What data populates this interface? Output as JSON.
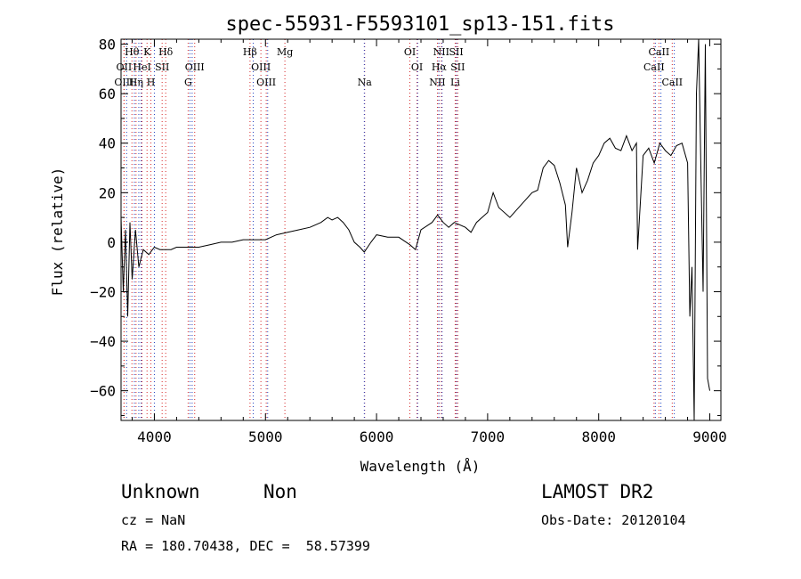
{
  "chart_data": {
    "type": "line",
    "title": "spec-55931-F5593101_sp13-151.fits",
    "xlabel": "Wavelength (Å)",
    "ylabel": "Flux (relative)",
    "xlim": [
      3700,
      9100
    ],
    "ylim": [
      -72,
      82
    ],
    "xticks": [
      4000,
      5000,
      6000,
      7000,
      8000,
      9000
    ],
    "yticks": [
      -60,
      -40,
      -20,
      0,
      20,
      40,
      60,
      80
    ],
    "xticklabels": [
      "4000",
      "5000",
      "6000",
      "7000",
      "8000",
      "9000"
    ],
    "yticklabels": [
      "−60",
      "−40",
      "−20",
      "0",
      "20",
      "40",
      "60",
      "80"
    ],
    "grid": false,
    "series": [
      {
        "color": "#000000",
        "x": [
          3700,
          3720,
          3740,
          3760,
          3780,
          3800,
          3830,
          3860,
          3900,
          3950,
          4000,
          4050,
          4100,
          4150,
          4200,
          4300,
          4400,
          4500,
          4600,
          4700,
          4800,
          4900,
          5000,
          5100,
          5200,
          5300,
          5400,
          5500,
          5560,
          5600,
          5650,
          5700,
          5750,
          5800,
          5850,
          5890,
          5950,
          6000,
          6100,
          6200,
          6300,
          6350,
          6400,
          6500,
          6550,
          6600,
          6650,
          6700,
          6800,
          6850,
          6900,
          7000,
          7050,
          7100,
          7200,
          7300,
          7400,
          7450,
          7500,
          7550,
          7600,
          7650,
          7700,
          7720,
          7760,
          7800,
          7850,
          7900,
          7950,
          8000,
          8050,
          8100,
          8150,
          8200,
          8250,
          8300,
          8340,
          8350,
          8400,
          8450,
          8500,
          8550,
          8600,
          8650,
          8700,
          8750,
          8800,
          8820,
          8840,
          8860,
          8880,
          8900,
          8920,
          8940,
          8960,
          8980,
          9000
        ],
        "y": [
          10,
          -20,
          5,
          -30,
          8,
          -15,
          5,
          -10,
          -3,
          -5,
          -2,
          -3,
          -3,
          -3,
          -2,
          -2,
          -2,
          -1,
          0,
          0,
          1,
          1,
          1,
          3,
          4,
          5,
          6,
          8,
          10,
          9,
          10,
          8,
          5,
          0,
          -2,
          -4,
          0,
          3,
          2,
          2,
          -1,
          -3,
          5,
          8,
          11,
          8,
          6,
          8,
          6,
          4,
          8,
          12,
          20,
          14,
          10,
          15,
          20,
          21,
          30,
          33,
          31,
          24,
          15,
          -2,
          12,
          30,
          20,
          25,
          32,
          35,
          40,
          42,
          38,
          37,
          43,
          37,
          40,
          -3,
          35,
          38,
          32,
          40,
          37,
          35,
          39,
          40,
          32,
          -30,
          -10,
          -72,
          60,
          82,
          30,
          -20,
          80,
          -55,
          -60
        ]
      }
    ],
    "line_ids": {
      "red": [
        {
          "label": "Hθ",
          "x": 3798,
          "row": 0
        },
        {
          "label": "K",
          "x": 3934,
          "row": 0
        },
        {
          "label": "Hδ",
          "x": 4102,
          "row": 0
        },
        {
          "label": "Hβ",
          "x": 4861,
          "row": 0
        },
        {
          "label": "Mg",
          "x": 5175,
          "row": 0
        },
        {
          "label": "OI",
          "x": 6300,
          "row": 0
        },
        {
          "label": "NII",
          "x": 6583,
          "row": 0
        },
        {
          "label": "SII",
          "x": 6717,
          "row": 0
        },
        {
          "label": "CaII",
          "x": 8542,
          "row": 0
        },
        {
          "label": "OII",
          "x": 3727,
          "row": 1
        },
        {
          "label": "HeI",
          "x": 3889,
          "row": 1
        },
        {
          "label": "SII",
          "x": 4070,
          "row": 1
        },
        {
          "label": "OIII",
          "x": 4363,
          "row": 1
        },
        {
          "label": "OIII",
          "x": 4959,
          "row": 1
        },
        {
          "label": "OI",
          "x": 6364,
          "row": 1
        },
        {
          "label": "Hα",
          "x": 6563,
          "row": 1
        },
        {
          "label": "SII",
          "x": 6731,
          "row": 1
        },
        {
          "label": "CaII",
          "x": 8498,
          "row": 1
        },
        {
          "label": "OIII",
          "x": 3727,
          "row": 2
        },
        {
          "label": "Hη",
          "x": 3835,
          "row": 2
        },
        {
          "label": "H",
          "x": 3969,
          "row": 2
        },
        {
          "label": "G",
          "x": 4304,
          "row": 2
        },
        {
          "label": "OIII",
          "x": 5007,
          "row": 2
        },
        {
          "label": "Na",
          "x": 5893,
          "row": 2
        },
        {
          "label": "NII",
          "x": 6548,
          "row": 2
        },
        {
          "label": "Li",
          "x": 6708,
          "row": 2
        },
        {
          "label": "CaII",
          "x": 8662,
          "row": 2
        }
      ],
      "blue_x": [
        3750,
        3820,
        3860,
        3880,
        4000,
        4320,
        4340,
        4890,
        5020,
        5890,
        6370,
        6560,
        6590,
        6720,
        8510,
        8560,
        8680
      ]
    }
  },
  "footer": {
    "type_text": "Unknown",
    "subtype_text": "Non",
    "cz_text": "cz = NaN",
    "radec_text": "RA = 180.70438, DEC =  58.57399",
    "survey_text": "LAMOST DR2",
    "obsdate_text": "Obs-Date: 20120104"
  }
}
